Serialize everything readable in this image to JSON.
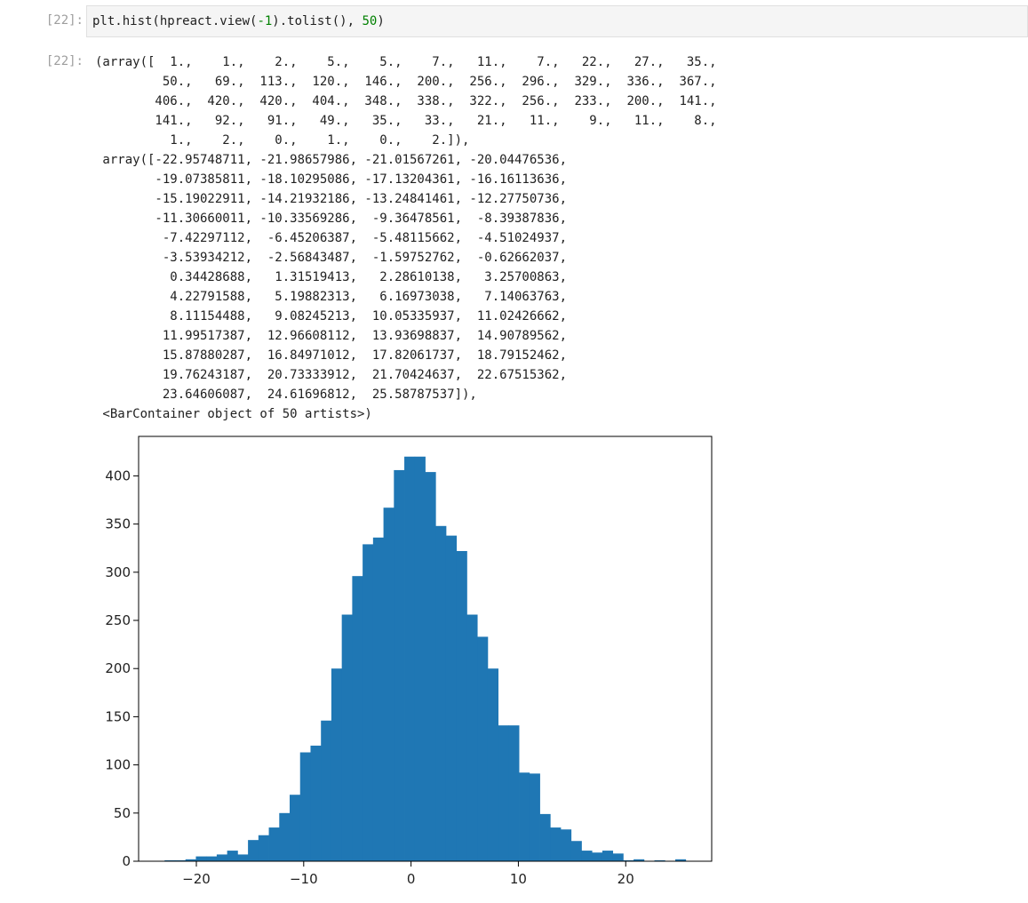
{
  "cell": {
    "in_prompt": "[22]:",
    "out_prompt": "[22]:",
    "code_prefix": "plt.hist(hpreact.view(",
    "code_arg1": "-1",
    "code_mid": ").tolist(), ",
    "code_arg2": "50",
    "code_suffix": ")"
  },
  "output": {
    "lines": [
      "(array([  1.,    1.,    2.,    5.,    5.,    7.,   11.,    7.,   22.,   27.,   35.,",
      "         50.,   69.,  113.,  120.,  146.,  200.,  256.,  296.,  329.,  336.,  367.,",
      "        406.,  420.,  420.,  404.,  348.,  338.,  322.,  256.,  233.,  200.,  141.,",
      "        141.,   92.,   91.,   49.,   35.,   33.,   21.,   11.,    9.,   11.,    8.,",
      "          1.,    2.,    0.,    1.,    0.,    2.]),",
      " array([-22.95748711, -21.98657986, -21.01567261, -20.04476536,",
      "        -19.07385811, -18.10295086, -17.13204361, -16.16113636,",
      "        -15.19022911, -14.21932186, -13.24841461, -12.27750736,",
      "        -11.30660011, -10.33569286,  -9.36478561,  -8.39387836,",
      "         -7.42297112,  -6.45206387,  -5.48115662,  -4.51024937,",
      "         -3.53934212,  -2.56843487,  -1.59752762,  -0.62662037,",
      "          0.34428688,   1.31519413,   2.28610138,   3.25700863,",
      "          4.22791588,   5.19882313,   6.16973038,   7.14063763,",
      "          8.11154488,   9.08245213,  10.05335937,  11.02426662,",
      "         11.99517387,  12.96608112,  13.93698837,  14.90789562,",
      "         15.87880287,  16.84971012,  17.82061737,  18.79152462,",
      "         19.76243187,  20.73333912,  21.70424637,  22.67515362,",
      "         23.64606087,  24.61696812,  25.58787537]),",
      " <BarContainer object of 50 artists>)"
    ]
  },
  "chart_data": {
    "type": "bar",
    "counts": [
      1,
      1,
      2,
      5,
      5,
      7,
      11,
      7,
      22,
      27,
      35,
      50,
      69,
      113,
      120,
      146,
      200,
      256,
      296,
      329,
      336,
      367,
      406,
      420,
      420,
      404,
      348,
      338,
      322,
      256,
      233,
      200,
      141,
      141,
      92,
      91,
      49,
      35,
      33,
      21,
      11,
      9,
      11,
      8,
      1,
      2,
      0,
      1,
      0,
      2
    ],
    "bin_start": -22.95748711,
    "bin_end": 25.58787537,
    "xlim": [
      -25.38,
      28.01
    ],
    "ylim": [
      0,
      441
    ],
    "xticks": [
      -20,
      -10,
      0,
      10,
      20
    ],
    "xtick_labels": [
      "−20",
      "−10",
      "0",
      "10",
      "20"
    ],
    "yticks": [
      0,
      50,
      100,
      150,
      200,
      250,
      300,
      350,
      400
    ],
    "ytick_labels": [
      "0",
      "50",
      "100",
      "150",
      "200",
      "250",
      "300",
      "350",
      "400"
    ],
    "bar_color": "#1f77b4",
    "grid": false
  }
}
